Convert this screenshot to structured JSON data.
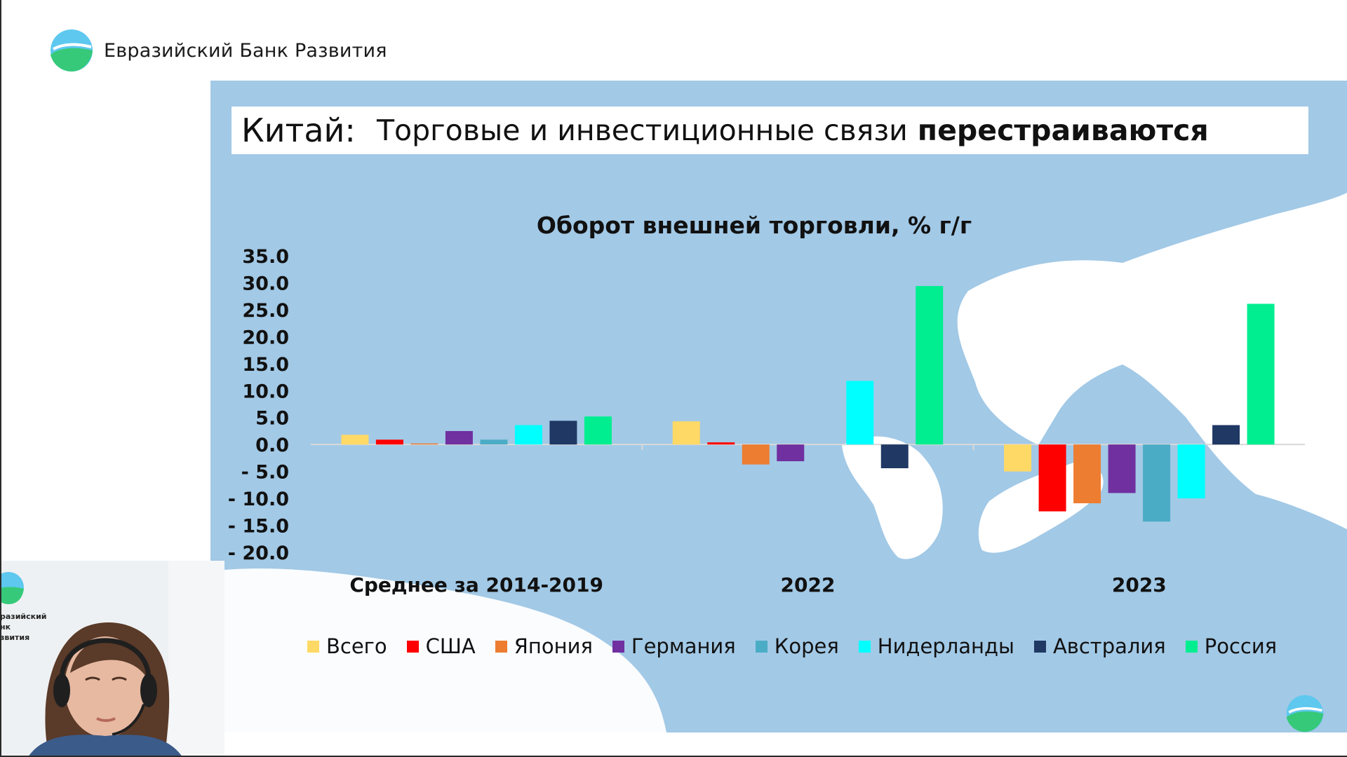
{
  "brand": {
    "name": "Евразийский Банк Развития",
    "logo_icon": "ebr-logo-icon"
  },
  "slide": {
    "title_country": "Китай:",
    "title_rest": "Торговые и инвестиционные связи",
    "title_bold": "перестраиваются"
  },
  "webcam": {
    "bg_text": [
      "разийский",
      "нк",
      "звития"
    ]
  },
  "colors": {
    "map_water": "#a2c9e6",
    "map_land": "#ffffff"
  },
  "chart_data": {
    "type": "bar",
    "title": "Оборот внешней торговли, % г/г",
    "categories": [
      "Среднее за 2014-2019",
      "2022",
      "2023"
    ],
    "ylim": [
      -20,
      35
    ],
    "yticks": [
      "35.0",
      "30.0",
      "25.0",
      "20.0",
      "15.0",
      "10.0",
      "5.0",
      "0.0",
      "- 5.0",
      "- 10.0",
      "- 15.0",
      "- 20.0"
    ],
    "grid": false,
    "legend_position": "bottom",
    "series": [
      {
        "name": "Всего",
        "color": "#ffd966",
        "values": [
          1.8,
          4.3,
          -5.0
        ]
      },
      {
        "name": "США",
        "color": "#ff0000",
        "values": [
          0.9,
          0.4,
          -12.4
        ]
      },
      {
        "name": "Япония",
        "color": "#ed7d31",
        "values": [
          0.2,
          -3.7,
          -10.9
        ]
      },
      {
        "name": "Германия",
        "color": "#7030a0",
        "values": [
          2.5,
          -3.1,
          -9.0
        ]
      },
      {
        "name": "Корея",
        "color": "#4bacc6",
        "values": [
          0.9,
          null,
          -14.3
        ]
      },
      {
        "name": "Нидерланды",
        "color": "#00ffff",
        "values": [
          3.6,
          11.8,
          -10.0
        ]
      },
      {
        "name": "Австралия",
        "color": "#1f3864",
        "values": [
          4.4,
          -4.4,
          3.6
        ]
      },
      {
        "name": "Россия",
        "color": "#00ee90",
        "values": [
          5.2,
          29.4,
          26.1
        ]
      }
    ]
  }
}
